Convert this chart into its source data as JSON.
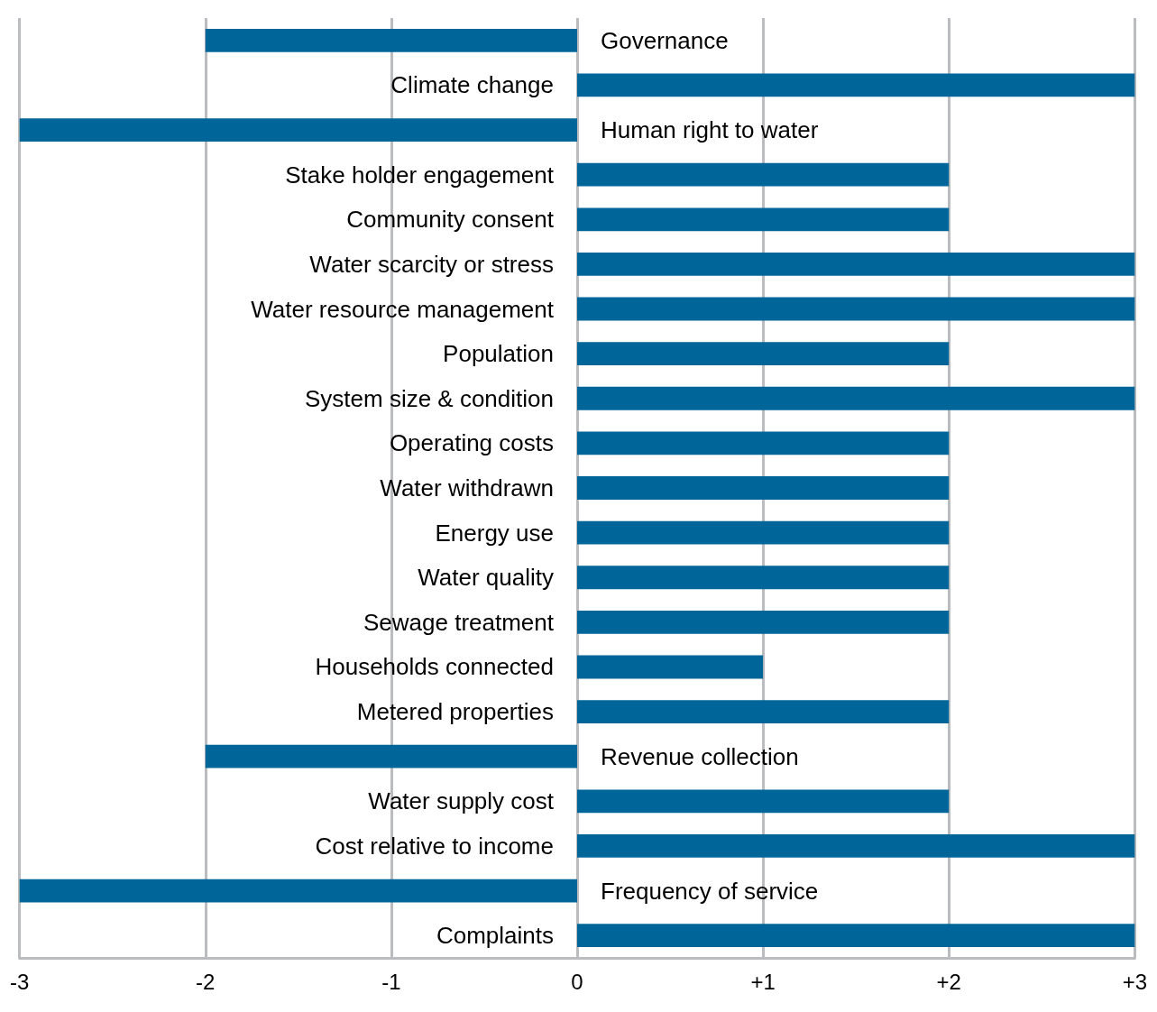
{
  "chart_data": {
    "type": "bar",
    "orientation": "horizontal",
    "color": "#006699",
    "grid": "x",
    "categories": [
      "Governance",
      "Climate change",
      "Human right to water",
      "Stake holder engagement",
      "Community consent",
      "Water scarcity or stress",
      "Water resource management",
      "Population",
      "System size & condition",
      "Operating costs",
      "Water withdrawn",
      "Energy use",
      "Water quality",
      "Sewage treatment",
      "Households connected",
      "Metered properties",
      "Revenue collection",
      "Water supply cost",
      "Cost relative to income",
      "Frequency of service",
      "Complaints"
    ],
    "values": [
      -2,
      3,
      -3,
      2,
      2,
      3,
      3,
      2,
      3,
      2,
      2,
      2,
      2,
      2,
      1,
      2,
      -2,
      2,
      3,
      -3,
      3
    ],
    "xlim": [
      -3,
      3
    ],
    "xticks": [
      -3,
      -2,
      -1,
      0,
      {
        "value": 1,
        "label": "+1"
      },
      {
        "value": 2,
        "label": "+2"
      },
      {
        "value": 3,
        "label": "+3"
      }
    ]
  }
}
